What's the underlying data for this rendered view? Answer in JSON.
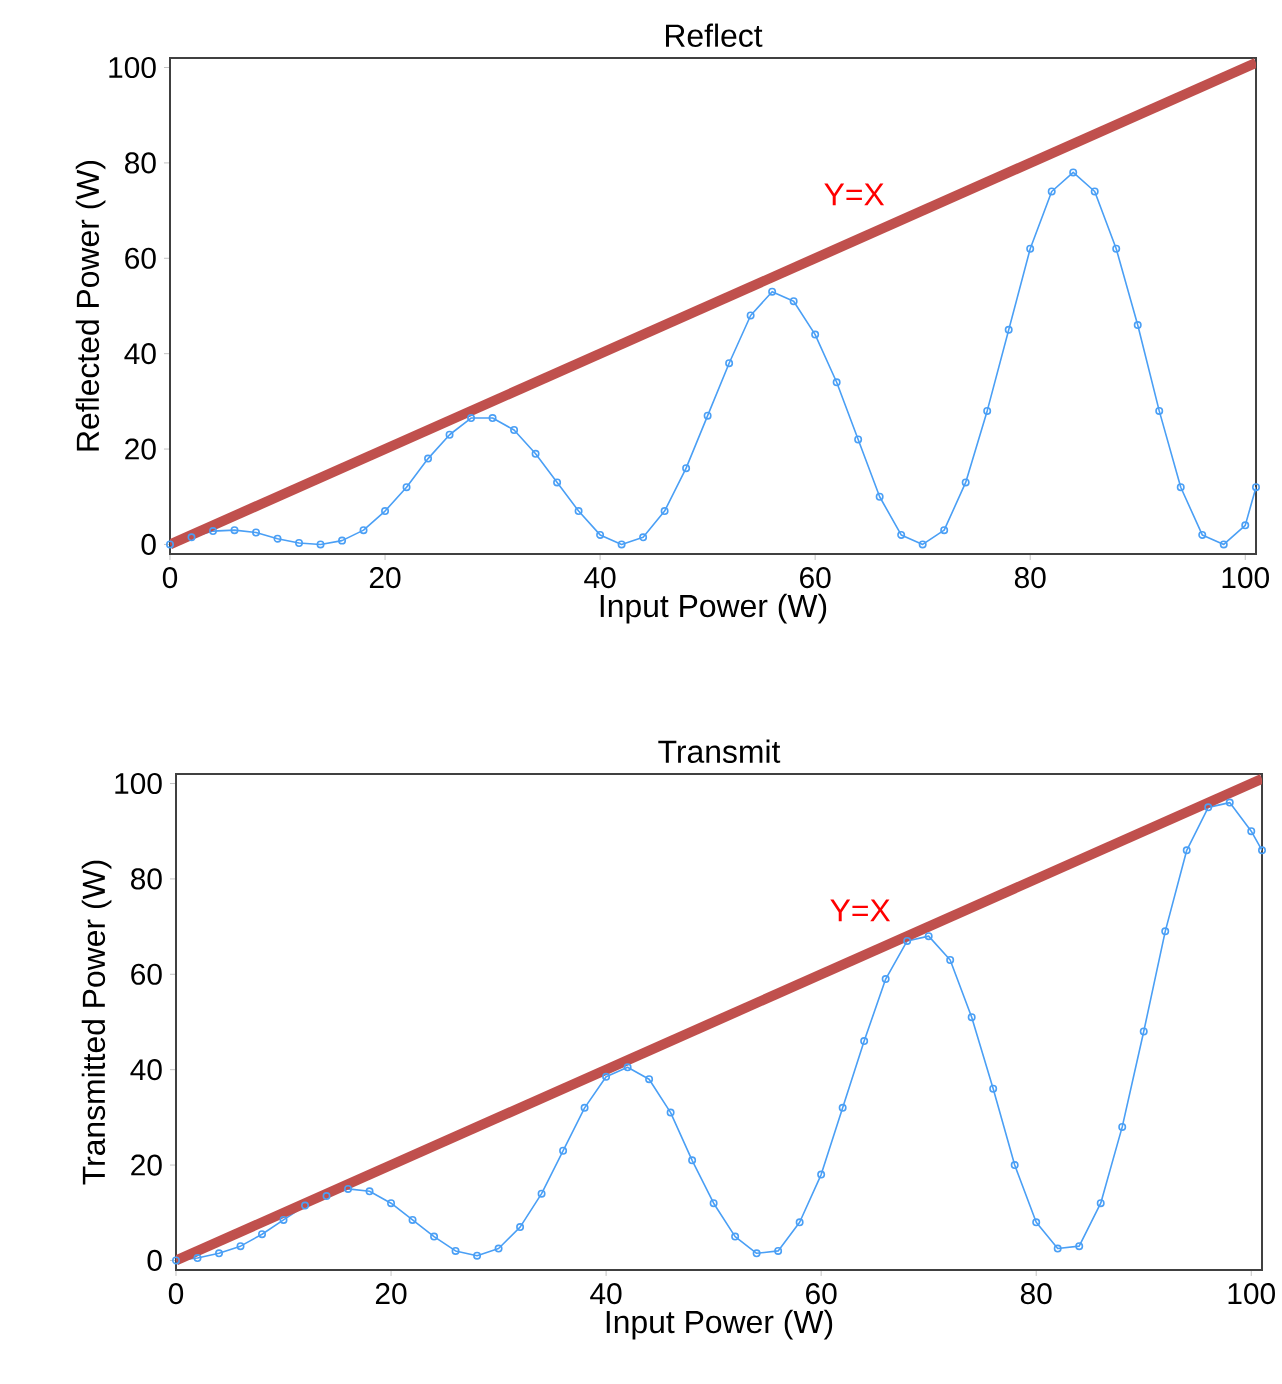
{
  "chart_data": [
    {
      "type": "line",
      "title": "Reflect",
      "xlabel": "Input Power (W)",
      "ylabel": "Reflected Power (W)",
      "xlim": [
        0,
        101
      ],
      "ylim": [
        -2,
        102
      ],
      "xticks": [
        0,
        20,
        40,
        60,
        80,
        100
      ],
      "yticks": [
        0,
        20,
        40,
        60,
        80,
        100
      ],
      "grid": false,
      "legend": false,
      "marker": "circle",
      "line_style": "solid",
      "series": [
        {
          "color": "#4a9ff5",
          "x": [
            0,
            2,
            4,
            6,
            8,
            10,
            12,
            14,
            16,
            18,
            20,
            22,
            24,
            26,
            28,
            30,
            32,
            34,
            36,
            38,
            40,
            42,
            44,
            46,
            48,
            50,
            52,
            54,
            56,
            58,
            60,
            62,
            64,
            66,
            68,
            70,
            72,
            74,
            76,
            78,
            80,
            82,
            84,
            86,
            88,
            90,
            92,
            94,
            96,
            98,
            100,
            101
          ],
          "values": [
            0,
            1.5,
            2.8,
            3,
            2.5,
            1.2,
            0.3,
            0,
            0.8,
            3,
            7,
            12,
            18,
            23,
            26.5,
            26.5,
            24,
            19,
            13,
            7,
            2,
            0,
            1.5,
            7,
            16,
            27,
            38,
            48,
            53,
            51,
            44,
            34,
            22,
            10,
            2,
            0,
            3,
            13,
            28,
            45,
            62,
            74,
            78,
            74,
            62,
            46,
            28,
            12,
            2,
            0,
            4,
            12
          ]
        },
        {
          "name": "Y=X",
          "color": "#c0504d",
          "marker": "none",
          "x": [
            0,
            101
          ],
          "values": [
            0,
            101
          ]
        }
      ]
    },
    {
      "type": "line",
      "title": "Transmit",
      "xlabel": "Input Power (W)",
      "ylabel": "Transmitted Power (W)",
      "xlim": [
        0,
        101
      ],
      "ylim": [
        -2,
        102
      ],
      "xticks": [
        0,
        20,
        40,
        60,
        80,
        100
      ],
      "yticks": [
        0,
        20,
        40,
        60,
        80,
        100
      ],
      "grid": false,
      "legend": false,
      "marker": "circle",
      "line_style": "solid",
      "series": [
        {
          "color": "#4a9ff5",
          "x": [
            0,
            2,
            4,
            6,
            8,
            10,
            12,
            14,
            16,
            18,
            20,
            22,
            24,
            26,
            28,
            30,
            32,
            34,
            36,
            38,
            40,
            42,
            44,
            46,
            48,
            50,
            52,
            54,
            56,
            58,
            60,
            62,
            64,
            66,
            68,
            70,
            72,
            74,
            76,
            78,
            80,
            82,
            84,
            86,
            88,
            90,
            92,
            94,
            96,
            98,
            100,
            101
          ],
          "values": [
            0,
            0.5,
            1.5,
            3,
            5.5,
            8.5,
            11.5,
            13.5,
            15,
            14.5,
            12,
            8.5,
            5,
            2,
            1,
            2.5,
            7,
            14,
            23,
            32,
            38.5,
            40.5,
            38,
            31,
            21,
            12,
            5,
            1.5,
            2,
            8,
            18,
            32,
            46,
            59,
            67,
            68,
            63,
            51,
            36,
            20,
            8,
            2.5,
            3,
            12,
            28,
            48,
            69,
            86,
            95,
            96,
            90,
            86
          ]
        },
        {
          "name": "Y=X",
          "color": "#c0504d",
          "marker": "none",
          "x": [
            0,
            101
          ],
          "values": [
            0,
            101
          ]
        }
      ]
    }
  ]
}
